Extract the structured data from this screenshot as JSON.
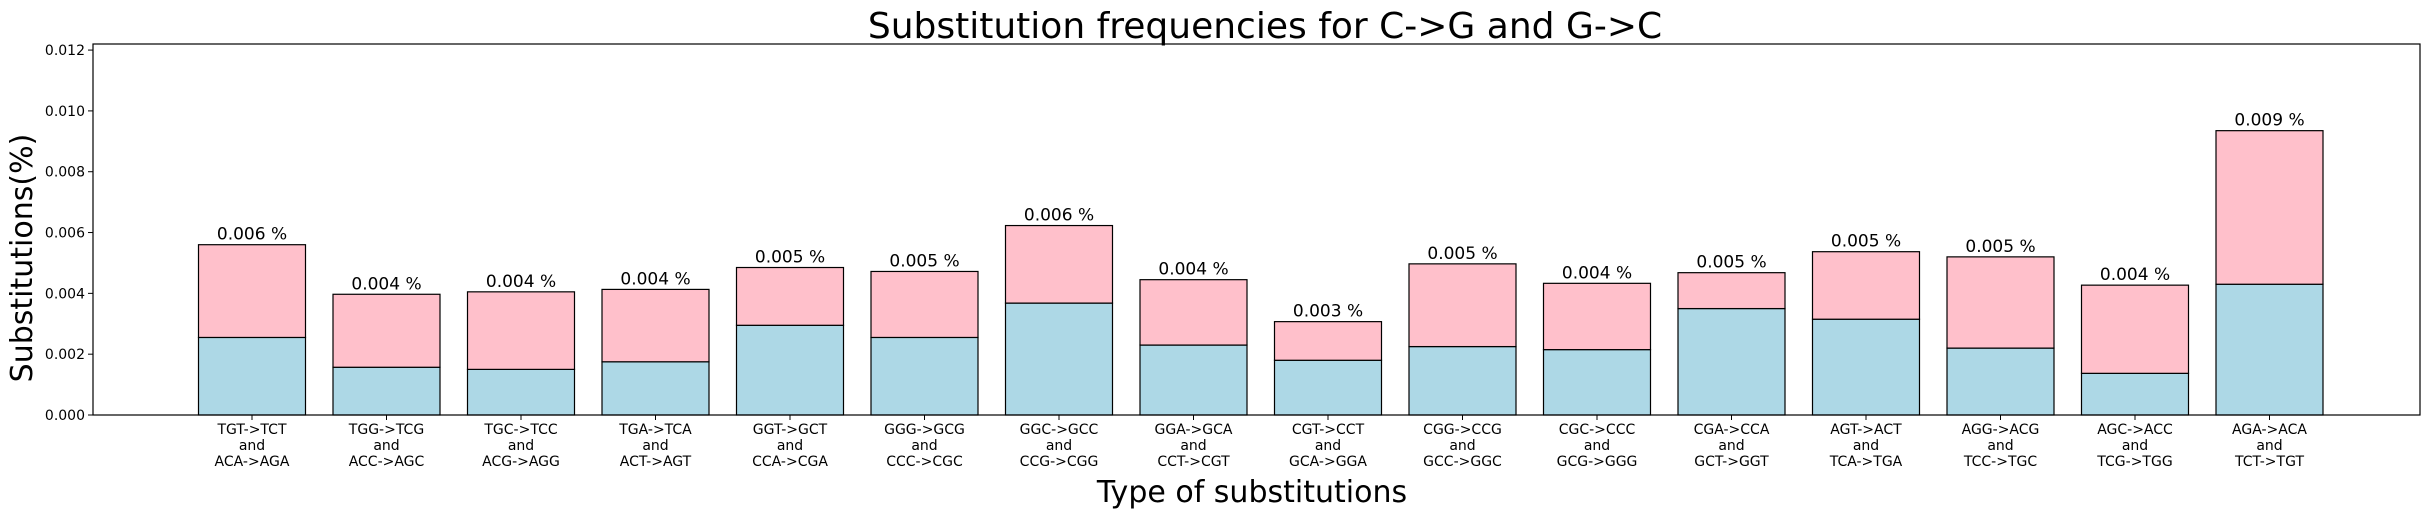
{
  "chart_data": {
    "type": "bar",
    "stacked": true,
    "title": "Substitution frequencies for C->G and G->C",
    "xlabel": "Type of substitutions",
    "ylabel": "Substitutions(%)",
    "ylim": [
      0,
      0.0122
    ],
    "yticks": [
      "0.000",
      "0.002",
      "0.004",
      "0.006",
      "0.008",
      "0.010",
      "0.012"
    ],
    "grid": false,
    "categories": [
      [
        "TGT->TCT",
        "and",
        "ACA->AGA"
      ],
      [
        "TGG->TCG",
        "and",
        "ACC->AGC"
      ],
      [
        "TGC->TCC",
        "and",
        "ACG->AGG"
      ],
      [
        "TGA->TCA",
        "and",
        "ACT->AGT"
      ],
      [
        "GGT->GCT",
        "and",
        "CCA->CGA"
      ],
      [
        "GGG->GCG",
        "and",
        "CCC->CGC"
      ],
      [
        "GGC->GCC",
        "and",
        "CCG->CGG"
      ],
      [
        "GGA->GCA",
        "and",
        "CCT->CGT"
      ],
      [
        "CGT->CCT",
        "and",
        "GCA->GGA"
      ],
      [
        "CGG->CCG",
        "and",
        "GCC->GGC"
      ],
      [
        "CGC->CCC",
        "and",
        "GCG->GGG"
      ],
      [
        "CGA->CCA",
        "and",
        "GCT->GGT"
      ],
      [
        "AGT->ACT",
        "and",
        "TCA->TGA"
      ],
      [
        "AGG->ACG",
        "and",
        "TCC->TGC"
      ],
      [
        "AGC->ACC",
        "and",
        "TCG->TGG"
      ],
      [
        "AGA->ACA",
        "and",
        "TCT->TGT"
      ]
    ],
    "series": [
      {
        "color": "#add8e6",
        "values": [
          0.00255,
          0.00157,
          0.0015,
          0.00175,
          0.00295,
          0.00255,
          0.00368,
          0.0023,
          0.0018,
          0.00225,
          0.00215,
          0.0035,
          0.00315,
          0.0022,
          0.00137,
          0.0043
        ]
      },
      {
        "color": "#ffc0cb",
        "values": [
          0.00305,
          0.0024,
          0.00255,
          0.00238,
          0.0019,
          0.00217,
          0.00255,
          0.00215,
          0.00127,
          0.00272,
          0.00218,
          0.00118,
          0.00222,
          0.003,
          0.0029,
          0.00505
        ]
      }
    ],
    "labels": [
      "0.006 %",
      "0.004 %",
      "0.004 %",
      "0.004 %",
      "0.005 %",
      "0.005 %",
      "0.006 %",
      "0.004 %",
      "0.003 %",
      "0.005 %",
      "0.004 %",
      "0.005 %",
      "0.005 %",
      "0.005 %",
      "0.004 %",
      "0.009 %"
    ]
  }
}
